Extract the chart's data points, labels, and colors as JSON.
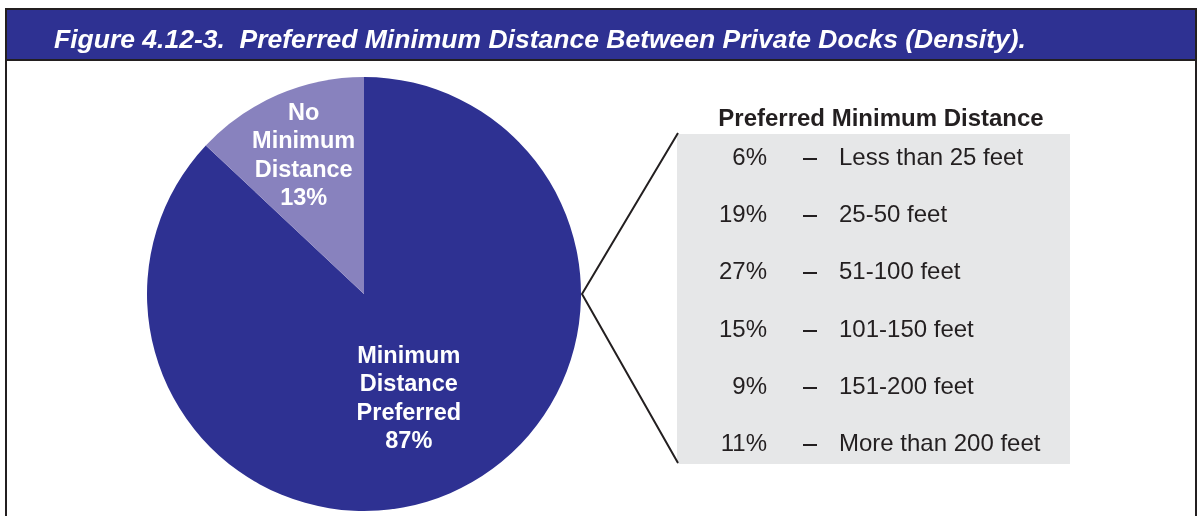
{
  "chart_data": [
    {
      "type": "pie",
      "title": "Figure 4.12-3.  Preferred Minimum Distance Between Private Docks (Density).",
      "categories": [
        "Minimum Distance Preferred",
        "No Minimum Distance"
      ],
      "values": [
        87,
        13
      ],
      "value_labels": [
        "87%",
        "13%"
      ],
      "colors": [
        "#2e3192",
        "#8882be"
      ]
    },
    {
      "type": "other",
      "title": "Preferred Minimum Distance",
      "categories": [
        "Less than 25 feet",
        "25-50 feet",
        "51-100 feet",
        "101-150 feet",
        "151-200 feet",
        "More than 200 feet"
      ],
      "value_labels": [
        "6%",
        "19%",
        "27%",
        "15%",
        "9%",
        "11%"
      ]
    }
  ]
}
